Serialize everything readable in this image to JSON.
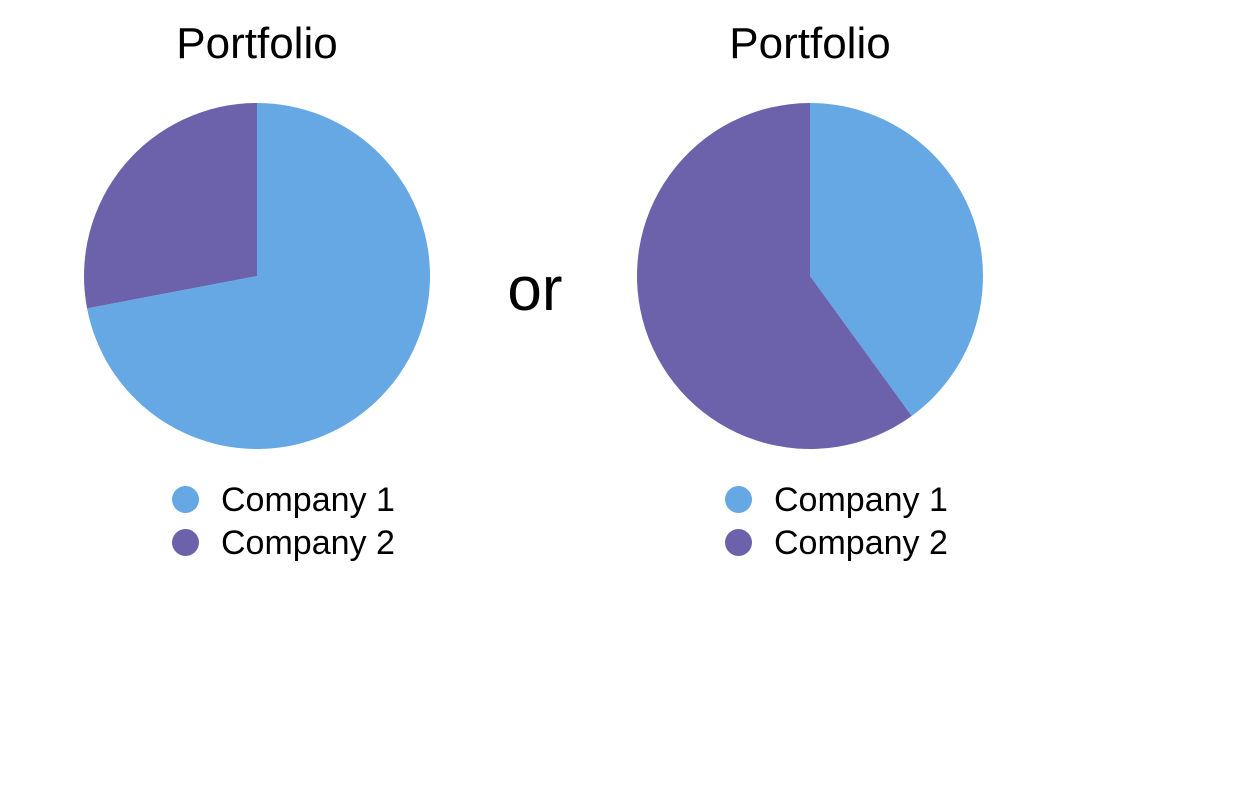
{
  "separator": "or",
  "chart_data": [
    {
      "type": "pie",
      "title": "Portfolio",
      "categories": [
        "Company 1",
        "Company 2"
      ],
      "values": [
        72,
        28
      ],
      "colors": [
        "#66a8e4",
        "#6c62ab"
      ],
      "legend": {
        "position": "bottom"
      }
    },
    {
      "type": "pie",
      "title": "Portfolio",
      "categories": [
        "Company 1",
        "Company 2"
      ],
      "values": [
        40,
        60
      ],
      "colors": [
        "#66a8e4",
        "#6c62ab"
      ],
      "legend": {
        "position": "bottom"
      }
    }
  ]
}
